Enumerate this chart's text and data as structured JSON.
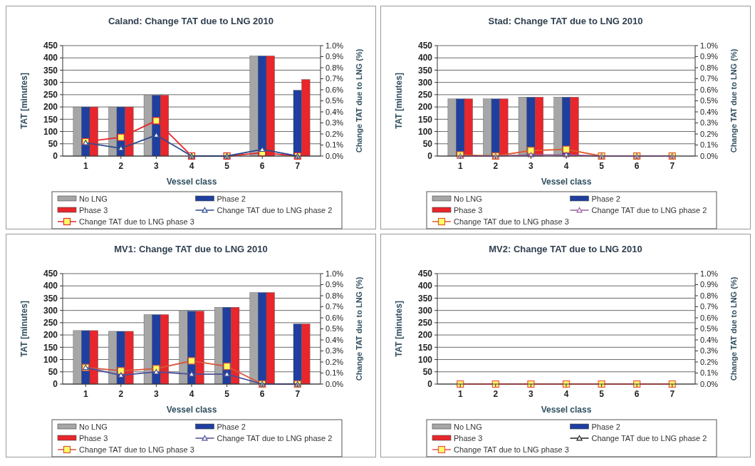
{
  "chart_data": [
    {
      "type": "bar",
      "title": "Caland: Change TAT due to LNG 2010",
      "xlabel": "Vessel class",
      "ylabel": "TAT [minutes]",
      "y2label": "Change TAT due to LNG (%)",
      "categories": [
        "1",
        "2",
        "3",
        "4",
        "5",
        "6",
        "7"
      ],
      "grid": "y",
      "legend": "bottom",
      "ylim": [
        0,
        450
      ],
      "yticks": [
        0,
        50,
        100,
        150,
        200,
        250,
        300,
        350,
        400,
        450
      ],
      "y2lim": [
        0,
        1.0
      ],
      "y2ticks": [
        {
          "value": 0,
          "label": "0.0%"
        },
        {
          "value": 0.1,
          "label": "0.1%"
        },
        {
          "value": 0.2,
          "label": "0.2%"
        },
        {
          "value": 0.3,
          "label": "0.3%"
        },
        {
          "value": 0.4,
          "label": "0.4%"
        },
        {
          "value": 0.5,
          "label": "0.5%"
        },
        {
          "value": 0.6,
          "label": "0.6%"
        },
        {
          "value": 0.7,
          "label": "0.7%"
        },
        {
          "value": 0.8,
          "label": "0.8%"
        },
        {
          "value": 0.9,
          "label": "0.9%"
        },
        {
          "value": 1.0,
          "label": "1.0%"
        }
      ],
      "series": [
        {
          "name": "No LNG",
          "color": "#a6a6a6",
          "values": [
            200,
            200,
            248,
            null,
            null,
            408,
            null
          ]
        },
        {
          "name": "Phase 2",
          "color": "#1f3f9f",
          "values": [
            200,
            200,
            248,
            null,
            null,
            408,
            268
          ]
        },
        {
          "name": "Phase 3",
          "color": "#e8262b",
          "values": [
            200,
            200,
            248,
            null,
            null,
            408,
            312
          ]
        },
        {
          "name": "Change TAT due to LNG phase 2",
          "type": "line",
          "axis": "y2",
          "marker": "triangle",
          "color": "#2e4d8f",
          "values": [
            0.12,
            0.07,
            0.19,
            0.0,
            0.0,
            0.06,
            0.0
          ]
        },
        {
          "name": "Change TAT due to LNG phase 3",
          "type": "line",
          "axis": "y2",
          "marker": "square",
          "color": "#e8262b",
          "values": [
            0.13,
            0.17,
            0.32,
            0.0,
            0.0,
            0.03,
            0.0
          ]
        }
      ]
    },
    {
      "type": "bar",
      "title": "Stad: Change TAT due to LNG 2010",
      "xlabel": "Vessel class",
      "ylabel": "TAT [minutes]",
      "y2label": "Change TAT due to LNG (%)",
      "categories": [
        "1",
        "2",
        "3",
        "4",
        "5",
        "6",
        "7"
      ],
      "grid": "y",
      "legend": "bottom",
      "ylim": [
        0,
        450
      ],
      "yticks": [
        0,
        50,
        100,
        150,
        200,
        250,
        300,
        350,
        400,
        450
      ],
      "y2lim": [
        0,
        1.0
      ],
      "y2ticks": [
        {
          "value": 0,
          "label": "0.0%"
        },
        {
          "value": 0.1,
          "label": "0.1%"
        },
        {
          "value": 0.2,
          "label": "0.2%"
        },
        {
          "value": 0.3,
          "label": "0.3%"
        },
        {
          "value": 0.4,
          "label": "0.4%"
        },
        {
          "value": 0.5,
          "label": "0.5%"
        },
        {
          "value": 0.6,
          "label": "0.6%"
        },
        {
          "value": 0.7,
          "label": "0.7%"
        },
        {
          "value": 0.8,
          "label": "0.8%"
        },
        {
          "value": 0.9,
          "label": "0.9%"
        },
        {
          "value": 1.0,
          "label": "1.0%"
        }
      ],
      "series": [
        {
          "name": "No LNG",
          "color": "#a6a6a6",
          "values": [
            233,
            233,
            240,
            240,
            null,
            null,
            null
          ]
        },
        {
          "name": "Phase 2",
          "color": "#1f3f9f",
          "values": [
            233,
            233,
            240,
            240,
            null,
            null,
            null
          ]
        },
        {
          "name": "Phase 3",
          "color": "#e8262b",
          "values": [
            233,
            233,
            240,
            240,
            null,
            null,
            null
          ]
        },
        {
          "name": "Change TAT due to LNG phase 2",
          "type": "line",
          "axis": "y2",
          "marker": "triangle",
          "color": "#9b5fa0",
          "values": [
            0.0,
            0.0,
            0.01,
            0.01,
            0.0,
            0.0,
            0.0
          ]
        },
        {
          "name": "Change TAT due to LNG phase 3",
          "type": "line",
          "axis": "y2",
          "marker": "square",
          "color": "#e05a2b",
          "values": [
            0.01,
            0.0,
            0.05,
            0.06,
            0.0,
            0.0,
            0.0
          ]
        }
      ]
    },
    {
      "type": "bar",
      "title": "MV1: Change TAT due to LNG 2010",
      "xlabel": "Vessel class",
      "ylabel": "TAT [minutes]",
      "y2label": "Change TAT due to LNG (%)",
      "categories": [
        "1",
        "2",
        "3",
        "4",
        "5",
        "6",
        "7"
      ],
      "grid": "y",
      "legend": "bottom",
      "ylim": [
        0,
        450
      ],
      "yticks": [
        0,
        50,
        100,
        150,
        200,
        250,
        300,
        350,
        400,
        450
      ],
      "y2lim": [
        0,
        1.0
      ],
      "y2ticks": [
        {
          "value": 0,
          "label": "0.0%"
        },
        {
          "value": 0.1,
          "label": "0.1%"
        },
        {
          "value": 0.2,
          "label": "0.2%"
        },
        {
          "value": 0.3,
          "label": "0.3%"
        },
        {
          "value": 0.4,
          "label": "0.4%"
        },
        {
          "value": 0.5,
          "label": "0.5%"
        },
        {
          "value": 0.6,
          "label": "0.6%"
        },
        {
          "value": 0.7,
          "label": "0.7%"
        },
        {
          "value": 0.8,
          "label": "0.8%"
        },
        {
          "value": 0.9,
          "label": "0.9%"
        },
        {
          "value": 1.0,
          "label": "1.0%"
        }
      ],
      "series": [
        {
          "name": "No LNG",
          "color": "#a6a6a6",
          "values": [
            218,
            215,
            283,
            297,
            313,
            373,
            null
          ]
        },
        {
          "name": "Phase 2",
          "color": "#1f3f9f",
          "values": [
            218,
            215,
            283,
            297,
            313,
            373,
            245
          ]
        },
        {
          "name": "Phase 3",
          "color": "#e8262b",
          "values": [
            218,
            215,
            283,
            297,
            313,
            373,
            245
          ]
        },
        {
          "name": "Change TAT due to LNG phase 2",
          "type": "line",
          "axis": "y2",
          "marker": "triangle",
          "color": "#4a4f9a",
          "values": [
            0.15,
            0.08,
            0.11,
            0.09,
            0.09,
            0.0,
            0.0
          ]
        },
        {
          "name": "Change TAT due to LNG phase 3",
          "type": "line",
          "axis": "y2",
          "marker": "square",
          "color": "#d9543a",
          "values": [
            0.15,
            0.12,
            0.14,
            0.21,
            0.16,
            0.0,
            0.0
          ]
        }
      ]
    },
    {
      "type": "bar",
      "title": "MV2: Change TAT due to LNG 2010",
      "xlabel": "Vessel class",
      "ylabel": "TAT [minutes]",
      "y2label": "Change TAT due to LNG (%)",
      "categories": [
        "1",
        "2",
        "3",
        "4",
        "5",
        "6",
        "7"
      ],
      "grid": "y",
      "legend": "bottom",
      "ylim": [
        0,
        450
      ],
      "yticks": [
        0,
        50,
        100,
        150,
        200,
        250,
        300,
        350,
        400,
        450
      ],
      "y2lim": [
        0,
        1.0
      ],
      "y2ticks": [
        {
          "value": 0,
          "label": "0.0%"
        },
        {
          "value": 0.1,
          "label": "0.1%"
        },
        {
          "value": 0.2,
          "label": "0.2%"
        },
        {
          "value": 0.3,
          "label": "0.3%"
        },
        {
          "value": 0.4,
          "label": "0.4%"
        },
        {
          "value": 0.5,
          "label": "0.5%"
        },
        {
          "value": 0.6,
          "label": "0.6%"
        },
        {
          "value": 0.7,
          "label": "0.7%"
        },
        {
          "value": 0.8,
          "label": "0.8%"
        },
        {
          "value": 0.9,
          "label": "0.9%"
        },
        {
          "value": 1.0,
          "label": "1.0%"
        }
      ],
      "series": [
        {
          "name": "No LNG",
          "color": "#a6a6a6",
          "values": [
            null,
            null,
            null,
            null,
            null,
            null,
            null
          ]
        },
        {
          "name": "Phase 2",
          "color": "#1f3f9f",
          "values": [
            null,
            null,
            null,
            null,
            null,
            null,
            null
          ]
        },
        {
          "name": "Phase 3",
          "color": "#e8262b",
          "values": [
            null,
            null,
            null,
            null,
            null,
            null,
            null
          ]
        },
        {
          "name": "Change TAT due to LNG phase 2",
          "type": "line",
          "axis": "y2",
          "marker": "triangle",
          "color": "#222222",
          "values": [
            null,
            null,
            null,
            null,
            null,
            null,
            null
          ]
        },
        {
          "name": "Change TAT due to LNG phase 3",
          "type": "line",
          "axis": "y2",
          "marker": "square",
          "color": "#f05050",
          "values": [
            0.0,
            0.0,
            0.0,
            0.0,
            0.0,
            0.0,
            0.0
          ]
        }
      ]
    }
  ]
}
